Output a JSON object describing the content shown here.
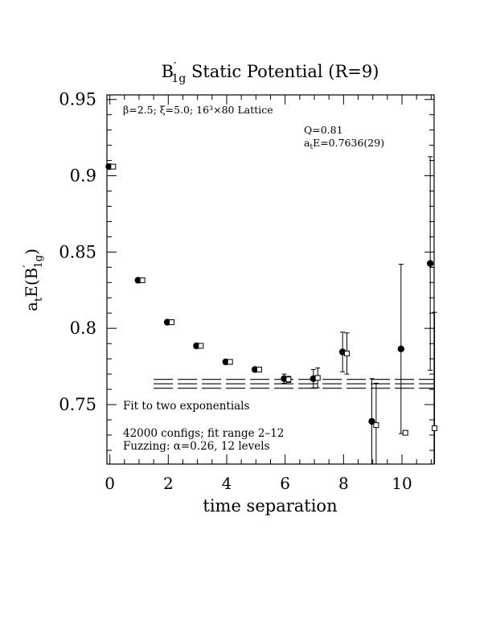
{
  "chart_data": {
    "type": "scatter",
    "title": {
      "main": "B",
      "prime": "′",
      "sub": "1g",
      "rest": " Static Potential (R=9)"
    },
    "xlabel": "time separation",
    "ylabel": {
      "a": "a",
      "t": "t",
      "mid": "E(B",
      "prime": "′",
      "sub": "1g",
      "end": ")"
    },
    "xlim": [
      -0.1,
      11.1
    ],
    "ylim": [
      0.711,
      0.953
    ],
    "x_ticks": [
      0,
      2,
      4,
      6,
      8,
      10
    ],
    "y_ticks": [
      0.75,
      0.8,
      0.85,
      0.9,
      0.95
    ],
    "x_tick_labels": [
      "0",
      "2",
      "4",
      "6",
      "8",
      "10"
    ],
    "y_tick_labels": [
      "0.75",
      "0.8",
      "0.85",
      "0.9",
      "0.95"
    ],
    "grid": false,
    "annotations": {
      "params": "β=2.5; ξ=5.0; 16³×80 Lattice",
      "q": "Q=0.81",
      "ate_a": "a",
      "ate_t": "t",
      "ate_rest": "E=0.7636(29)",
      "fit_type": "Fit to two exponentials",
      "configs": "42000 configs; fit range 2–12",
      "fuzzing": "Fuzzing: α=0.26, 12 levels"
    },
    "series": [
      {
        "marker": "filled-circle",
        "points": [
          {
            "x": 0,
            "y": 0.906,
            "err": 0
          },
          {
            "x": 1,
            "y": 0.8315,
            "err": 0.0015
          },
          {
            "x": 2,
            "y": 0.804,
            "err": 0.0015
          },
          {
            "x": 3,
            "y": 0.7885,
            "err": 0.0015
          },
          {
            "x": 4,
            "y": 0.778,
            "err": 0.0015
          },
          {
            "x": 5,
            "y": 0.773,
            "err": 0.0015
          },
          {
            "x": 6,
            "y": 0.767,
            "err": 0.003
          },
          {
            "x": 7,
            "y": 0.767,
            "err": 0.006
          },
          {
            "x": 8,
            "y": 0.7845,
            "err": 0.013
          },
          {
            "x": 9,
            "y": 0.739,
            "err": 0.028
          },
          {
            "x": 10,
            "y": 0.7865,
            "err": 0.0555
          },
          {
            "x": 11,
            "y": 0.8425,
            "err": 0.07
          }
        ]
      },
      {
        "marker": "open-square",
        "points": [
          {
            "x": 0,
            "y": 0.906,
            "err": 0
          },
          {
            "x": 1,
            "y": 0.8315,
            "err": 0.0015
          },
          {
            "x": 2,
            "y": 0.804,
            "err": 0.0015
          },
          {
            "x": 3,
            "y": 0.7885,
            "err": 0.0015
          },
          {
            "x": 4,
            "y": 0.778,
            "err": 0.0015
          },
          {
            "x": 5,
            "y": 0.773,
            "err": 0.0015
          },
          {
            "x": 6,
            "y": 0.7665,
            "err": 0.002
          },
          {
            "x": 7,
            "y": 0.7675,
            "err": 0.0065
          },
          {
            "x": 8,
            "y": 0.7835,
            "err": 0.0135
          },
          {
            "x": 9,
            "y": 0.7365,
            "err": 0.0275
          },
          {
            "x": 10,
            "y": 0.7315,
            "err": 0.0
          },
          {
            "x": 11,
            "y": 0.7345,
            "err": 0.076
          }
        ]
      }
    ],
    "fit_band": {
      "x_from": 1.5,
      "x_to": 11.1,
      "center": 0.7636,
      "error": 0.0029
    },
    "colors": {
      "ink": "#000000",
      "background": "#ffffff"
    }
  }
}
